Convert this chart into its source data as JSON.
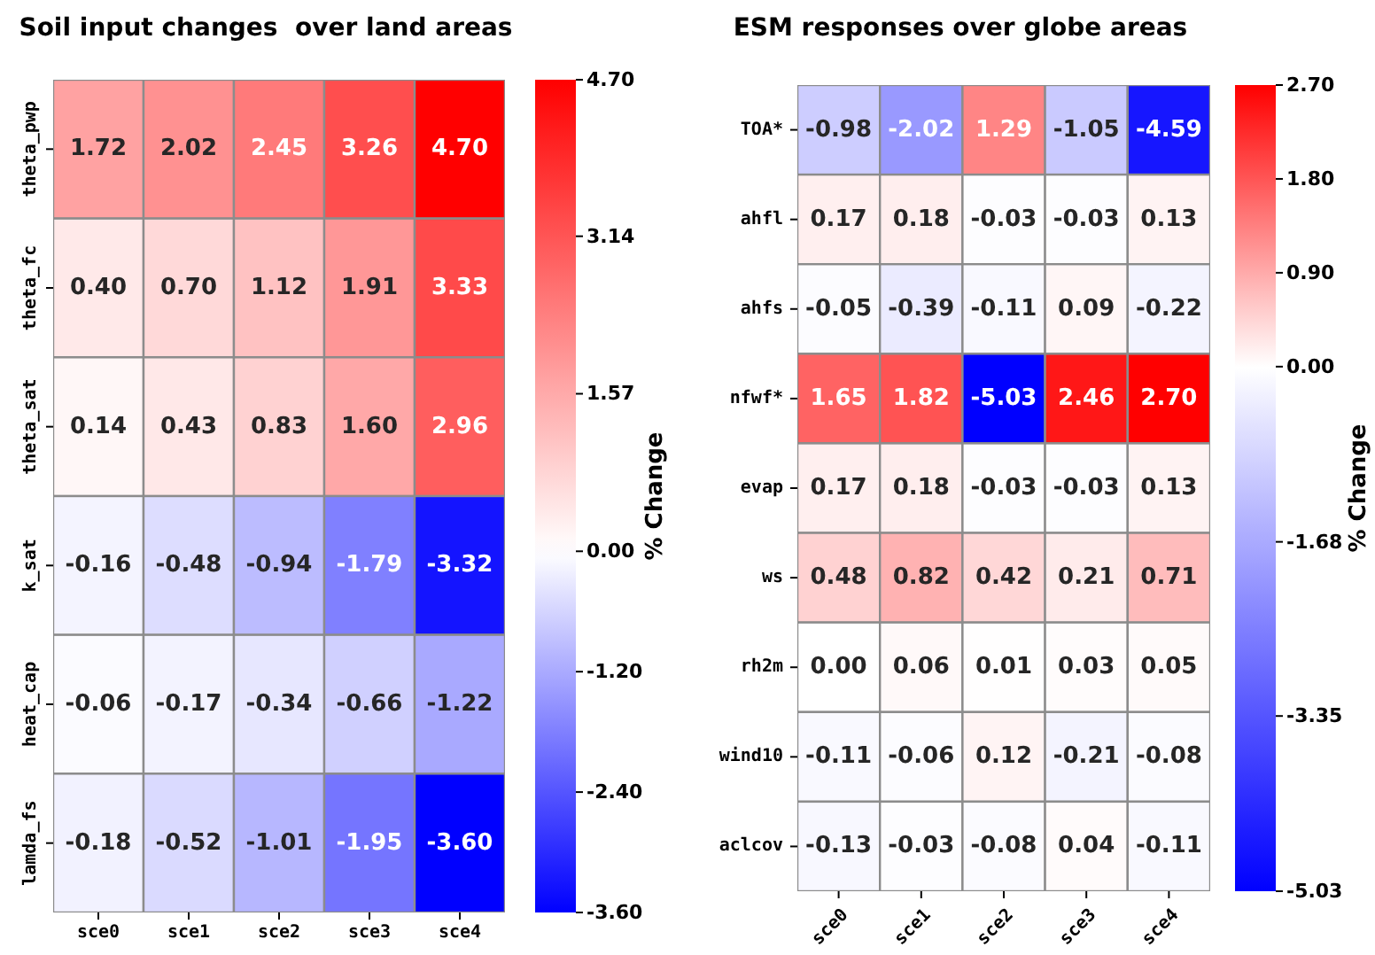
{
  "chart_data": [
    {
      "type": "heatmap",
      "title": "Soil input changes  over land areas",
      "categories": [
        "sce0",
        "sce1",
        "sce2",
        "sce3",
        "sce4"
      ],
      "y_categories": [
        "theta_pwp",
        "theta_fc",
        "theta_sat",
        "k_sat",
        "heat_cap",
        "lamda_fs"
      ],
      "cells": [
        [
          1.72,
          2.02,
          2.45,
          3.26,
          4.7
        ],
        [
          0.4,
          0.7,
          1.12,
          1.91,
          3.33
        ],
        [
          0.14,
          0.43,
          0.83,
          1.6,
          2.96
        ],
        [
          -0.16,
          -0.48,
          -0.94,
          -1.79,
          -3.32
        ],
        [
          -0.06,
          -0.17,
          -0.34,
          -0.66,
          -1.22
        ],
        [
          -0.18,
          -0.52,
          -1.01,
          -1.95,
          -3.6
        ]
      ],
      "cell_labels": [
        [
          "1.72",
          "2.02",
          "2.45",
          "3.26",
          "4.70"
        ],
        [
          "0.40",
          "0.70",
          "1.12",
          "1.91",
          "3.33"
        ],
        [
          "0.14",
          "0.43",
          "0.83",
          "1.60",
          "2.96"
        ],
        [
          "-0.16",
          "-0.48",
          "-0.94",
          "-1.79",
          "-3.32"
        ],
        [
          "-0.06",
          "-0.17",
          "-0.34",
          "-0.66",
          "-1.22"
        ],
        [
          "-0.18",
          "-0.52",
          "-1.01",
          "-1.95",
          "-3.60"
        ]
      ],
      "clabel": "% Change",
      "clim": [
        -3.6,
        4.7
      ],
      "cticks": [
        {
          "value": 4.7,
          "label": "4.70"
        },
        3.14,
        1.57,
        {
          "value": 0,
          "label": "0.00"
        },
        {
          "value": -1.2,
          "label": "-1.20"
        },
        {
          "value": -2.4,
          "label": "-2.40"
        },
        {
          "value": -3.6,
          "label": "-3.60"
        }
      ]
    },
    {
      "type": "heatmap",
      "title": "ESM responses over globe areas",
      "categories": [
        "sce0",
        "sce1",
        "sce2",
        "sce3",
        "sce4"
      ],
      "y_categories": [
        "TOA*",
        "ahfl",
        "ahfs",
        "nfwf*",
        "evap",
        "ws",
        "rh2m",
        "wind10",
        "aclcov"
      ],
      "cells": [
        [
          -0.98,
          -2.02,
          1.29,
          -1.05,
          -4.59
        ],
        [
          0.17,
          0.18,
          -0.03,
          -0.03,
          0.13
        ],
        [
          -0.05,
          -0.39,
          -0.11,
          0.09,
          -0.22
        ],
        [
          1.65,
          1.82,
          -5.03,
          2.46,
          2.7
        ],
        [
          0.17,
          0.18,
          -0.03,
          -0.03,
          0.13
        ],
        [
          0.48,
          0.82,
          0.42,
          0.21,
          0.71
        ],
        [
          0.0,
          0.06,
          0.01,
          0.03,
          0.05
        ],
        [
          -0.11,
          -0.06,
          0.12,
          -0.21,
          -0.08
        ],
        [
          -0.13,
          -0.03,
          -0.08,
          0.04,
          -0.11
        ]
      ],
      "cell_labels": [
        [
          "-0.98",
          "-2.02",
          "1.29",
          "-1.05",
          "-4.59"
        ],
        [
          "0.17",
          "0.18",
          "-0.03",
          "-0.03",
          "0.13"
        ],
        [
          "-0.05",
          "-0.39",
          "-0.11",
          "0.09",
          "-0.22"
        ],
        [
          "1.65",
          "1.82",
          "-5.03",
          "2.46",
          "2.70"
        ],
        [
          "0.17",
          "0.18",
          "-0.03",
          "-0.03",
          "0.13"
        ],
        [
          "0.48",
          "0.82",
          "0.42",
          "0.21",
          "0.71"
        ],
        [
          "0.00",
          "0.06",
          "0.01",
          "0.03",
          "0.05"
        ],
        [
          "-0.11",
          "-0.06",
          "0.12",
          "-0.21",
          "-0.08"
        ],
        [
          "-0.13",
          "-0.03",
          "-0.08",
          "0.04",
          "-0.11"
        ]
      ],
      "clabel": "% Change",
      "clim": [
        -5.03,
        2.7
      ],
      "cticks": [
        {
          "value": 2.7,
          "label": "2.70"
        },
        {
          "value": 1.8,
          "label": "1.80"
        },
        {
          "value": 0.9,
          "label": "0.90"
        },
        {
          "value": 0,
          "label": "0.00"
        },
        -1.68,
        -3.35,
        -5.03
      ]
    }
  ]
}
